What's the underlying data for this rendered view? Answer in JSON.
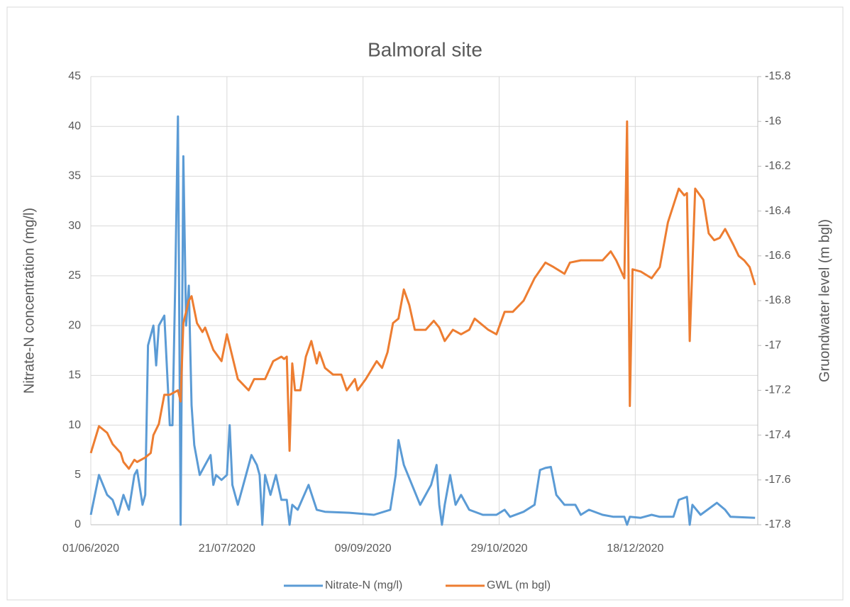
{
  "chart_data": {
    "type": "line",
    "title": "Balmoral site",
    "ylabel": "Nitrate-N concentration (mg/l)",
    "y2label": "Gruondwater level (m bgl)",
    "xlim": [
      "01/06/2020",
      "01/02/2021"
    ],
    "xticks": [
      "01/06/2020",
      "21/07/2020",
      "09/09/2020",
      "29/10/2020",
      "18/12/2020"
    ],
    "ylim": [
      0,
      45
    ],
    "yticks": [
      0,
      5,
      10,
      15,
      20,
      25,
      30,
      35,
      40,
      45
    ],
    "y2lim": [
      -17.8,
      -15.8
    ],
    "y2ticks": [
      -17.8,
      -17.6,
      -17.4,
      -17.2,
      -17,
      -16.8,
      -16.6,
      -16.4,
      -16.2,
      -16,
      -15.8
    ],
    "grid": true,
    "legend": "bottom",
    "series": [
      {
        "name": "Nitrate-N (mg/l)",
        "color": "#5b9bd5",
        "axis": "y",
        "x": [
          "01/06/2020",
          "04/06/2020",
          "07/06/2020",
          "09/06/2020",
          "11/06/2020",
          "13/06/2020",
          "15/06/2020",
          "17/06/2020",
          "18/06/2020",
          "20/06/2020",
          "21/06/2020",
          "22/06/2020",
          "24/06/2020",
          "25/06/2020",
          "26/06/2020",
          "28/06/2020",
          "30/06/2020",
          "01/07/2020",
          "02/07/2020",
          "03/07/2020",
          "04/07/2020",
          "05/07/2020",
          "06/07/2020",
          "07/07/2020",
          "08/07/2020",
          "09/07/2020",
          "11/07/2020",
          "13/07/2020",
          "15/07/2020",
          "16/07/2020",
          "17/07/2020",
          "19/07/2020",
          "21/07/2020",
          "22/07/2020",
          "23/07/2020",
          "25/07/2020",
          "27/07/2020",
          "30/07/2020",
          "01/08/2020",
          "02/08/2020",
          "03/08/2020",
          "04/08/2020",
          "06/08/2020",
          "08/08/2020",
          "10/08/2020",
          "12/08/2020",
          "13/08/2020",
          "14/08/2020",
          "16/08/2020",
          "20/08/2020",
          "23/08/2020",
          "26/08/2020",
          "04/09/2020",
          "13/09/2020",
          "19/09/2020",
          "21/09/2020",
          "22/09/2020",
          "24/09/2020",
          "27/09/2020",
          "30/09/2020",
          "04/10/2020",
          "06/10/2020",
          "07/10/2020",
          "08/10/2020",
          "09/10/2020",
          "11/10/2020",
          "13/10/2020",
          "15/10/2020",
          "18/10/2020",
          "23/10/2020",
          "28/10/2020",
          "31/10/2020",
          "02/11/2020",
          "07/11/2020",
          "11/11/2020",
          "13/11/2020",
          "15/11/2020",
          "17/11/2020",
          "19/11/2020",
          "22/11/2020",
          "26/11/2020",
          "28/11/2020",
          "01/12/2020",
          "06/12/2020",
          "10/12/2020",
          "14/12/2020",
          "15/12/2020",
          "16/12/2020",
          "20/12/2020",
          "24/12/2020",
          "27/12/2020",
          "01/01/2021",
          "03/01/2021",
          "06/01/2021",
          "07/01/2021",
          "08/01/2021",
          "11/01/2021",
          "17/01/2021",
          "20/01/2021",
          "22/01/2021",
          "31/01/2021"
        ],
        "values": [
          1,
          5,
          3,
          2.5,
          1,
          3,
          1.5,
          5,
          5.5,
          2,
          3,
          18,
          20,
          16,
          20,
          21,
          10,
          10,
          24,
          41,
          0,
          37,
          20,
          24,
          12,
          8,
          5,
          6,
          7,
          4,
          5,
          4.5,
          5,
          10,
          4,
          2,
          4,
          7,
          6,
          5,
          0,
          5,
          3,
          5,
          2.5,
          2.5,
          0,
          2,
          1.5,
          4,
          1.5,
          1.3,
          1.2,
          1,
          1.5,
          5,
          8.5,
          6,
          4,
          2,
          4,
          6,
          2,
          0,
          2,
          5,
          2,
          3,
          1.5,
          1,
          1,
          1.5,
          0.8,
          1.3,
          2,
          5.5,
          5.7,
          5.8,
          3,
          2,
          2,
          1,
          1.5,
          1,
          0.8,
          0.8,
          0,
          0.8,
          0.7,
          1,
          0.8,
          0.8,
          2.5,
          2.8,
          0,
          2,
          1,
          2.2,
          1.5,
          0.8,
          0.7
        ]
      },
      {
        "name": "GWL (m bgl)",
        "color": "#ed7d31",
        "axis": "y2",
        "x": [
          "01/06/2020",
          "03/06/2020",
          "04/06/2020",
          "07/06/2020",
          "09/06/2020",
          "12/06/2020",
          "13/06/2020",
          "15/06/2020",
          "17/06/2020",
          "18/06/2020",
          "21/06/2020",
          "23/06/2020",
          "24/06/2020",
          "26/06/2020",
          "28/06/2020",
          "30/06/2020",
          "03/07/2020",
          "04/07/2020",
          "05/07/2020",
          "07/07/2020",
          "08/07/2020",
          "10/07/2020",
          "12/07/2020",
          "13/07/2020",
          "16/07/2020",
          "19/07/2020",
          "21/07/2020",
          "22/07/2020",
          "25/07/2020",
          "29/07/2020",
          "31/07/2020",
          "04/08/2020",
          "07/08/2020",
          "10/08/2020",
          "11/08/2020",
          "12/08/2020",
          "13/08/2020",
          "14/08/2020",
          "15/08/2020",
          "17/08/2020",
          "19/08/2020",
          "21/08/2020",
          "23/08/2020",
          "24/08/2020",
          "26/08/2020",
          "29/08/2020",
          "01/09/2020",
          "03/09/2020",
          "06/09/2020",
          "07/09/2020",
          "10/09/2020",
          "14/09/2020",
          "16/09/2020",
          "18/09/2020",
          "20/09/2020",
          "22/09/2020",
          "24/09/2020",
          "26/09/2020",
          "28/09/2020",
          "02/10/2020",
          "05/10/2020",
          "07/10/2020",
          "09/10/2020",
          "12/10/2020",
          "15/10/2020",
          "18/10/2020",
          "20/10/2020",
          "25/10/2020",
          "28/10/2020",
          "31/10/2020",
          "03/11/2020",
          "07/11/2020",
          "11/11/2020",
          "15/11/2020",
          "18/11/2020",
          "22/11/2020",
          "24/11/2020",
          "28/11/2020",
          "02/12/2020",
          "06/12/2020",
          "09/12/2020",
          "11/12/2020",
          "14/12/2020",
          "15/12/2020",
          "16/12/2020",
          "17/12/2020",
          "20/12/2020",
          "24/12/2020",
          "27/12/2020",
          "30/12/2020",
          "03/01/2021",
          "05/01/2021",
          "06/01/2021",
          "07/01/2021",
          "09/01/2021",
          "12/01/2021",
          "14/01/2021",
          "16/01/2021",
          "18/01/2021",
          "20/01/2021",
          "23/01/2021",
          "25/01/2021",
          "27/01/2021",
          "29/01/2021",
          "31/01/2021"
        ],
        "values": [
          -17.48,
          -17.4,
          -17.36,
          -17.39,
          -17.44,
          -17.48,
          -17.52,
          -17.55,
          -17.51,
          -17.52,
          -17.5,
          -17.48,
          -17.4,
          -17.35,
          -17.22,
          -17.22,
          -17.2,
          -17.25,
          -16.9,
          -16.8,
          -16.78,
          -16.9,
          -16.94,
          -16.92,
          -17.02,
          -17.07,
          -16.95,
          -17,
          -17.15,
          -17.2,
          -17.15,
          -17.15,
          -17.07,
          -17.05,
          -17.06,
          -17.05,
          -17.47,
          -17.08,
          -17.2,
          -17.2,
          -17.05,
          -16.98,
          -17.08,
          -17.03,
          -17.1,
          -17.13,
          -17.13,
          -17.2,
          -17.15,
          -17.2,
          -17.15,
          -17.07,
          -17.1,
          -17.03,
          -16.9,
          -16.88,
          -16.75,
          -16.82,
          -16.93,
          -16.93,
          -16.89,
          -16.92,
          -16.98,
          -16.93,
          -16.95,
          -16.93,
          -16.88,
          -16.93,
          -16.95,
          -16.85,
          -16.85,
          -16.8,
          -16.7,
          -16.63,
          -16.65,
          -16.68,
          -16.63,
          -16.62,
          -16.62,
          -16.62,
          -16.58,
          -16.62,
          -16.7,
          -16,
          -17.27,
          -16.66,
          -16.67,
          -16.7,
          -16.65,
          -16.45,
          -16.3,
          -16.33,
          -16.32,
          -16.98,
          -16.3,
          -16.35,
          -16.5,
          -16.53,
          -16.52,
          -16.48,
          -16.55,
          -16.6,
          -16.62,
          -16.65,
          -16.73
        ]
      }
    ]
  }
}
